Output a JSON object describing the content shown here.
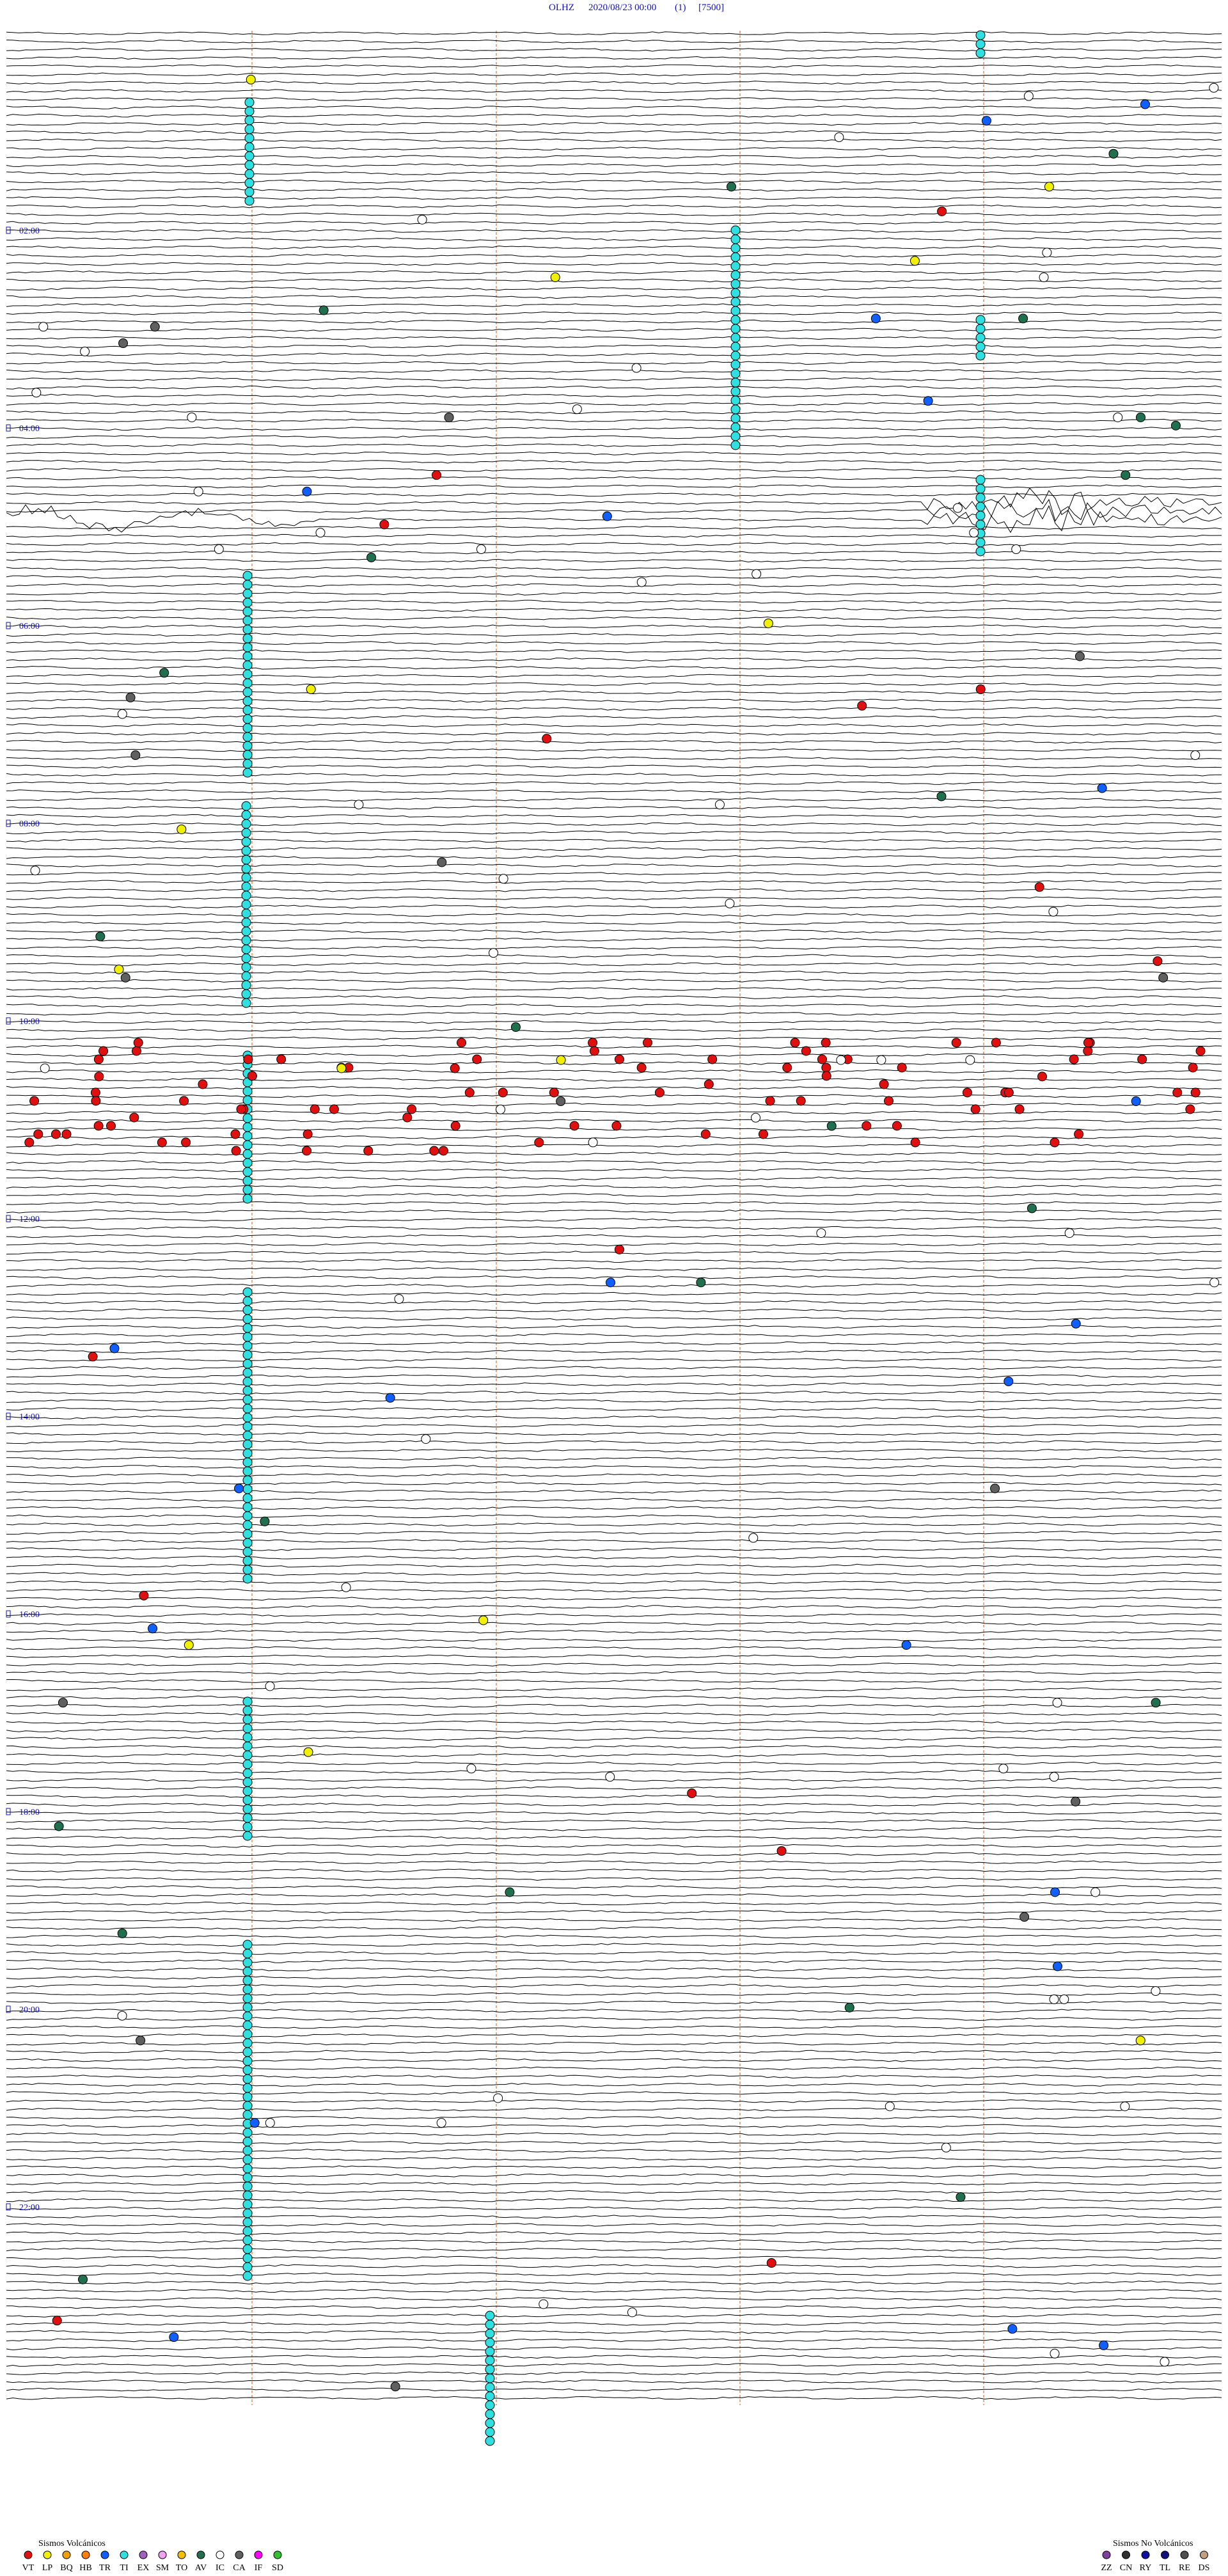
{
  "header": {
    "station": "OLHZ",
    "datetime": "2020/08/23 00:00",
    "channel": "(1)",
    "scale": "[7500]"
  },
  "hour_labels": [
    "02:00",
    "04:00",
    "06:00",
    "08:00",
    "10:00",
    "12:00",
    "14:00",
    "16:00",
    "18:00",
    "20:00",
    "22:00"
  ],
  "legend_volcanic": {
    "title": "Sismos Volcánicos",
    "items": [
      {
        "label": "VT",
        "color": "#e01010"
      },
      {
        "label": "LP",
        "color": "#f0f000"
      },
      {
        "label": "BQ",
        "color": "#f0a000"
      },
      {
        "label": "HB",
        "color": "#ff8000"
      },
      {
        "label": "TR",
        "color": "#1060ff"
      },
      {
        "label": "TI",
        "color": "#30e0e0"
      },
      {
        "label": "EX",
        "color": "#a060c0"
      },
      {
        "label": "SM",
        "color": "#f0a0f0"
      },
      {
        "label": "TO",
        "color": "#f0c000"
      },
      {
        "label": "AV",
        "color": "#207050"
      },
      {
        "label": "IC",
        "color": "#ffffff"
      },
      {
        "label": "CA",
        "color": "#606060"
      },
      {
        "label": "IF",
        "color": "#ff00ff"
      },
      {
        "label": "SD",
        "color": "#30c030"
      }
    ]
  },
  "legend_non_volcanic": {
    "title": "Sismos No Volcánicos",
    "items": [
      {
        "label": "ZZ",
        "color": "#8040a0"
      },
      {
        "label": "CN",
        "color": "#303030"
      },
      {
        "label": "RY",
        "color": "#1010a0"
      },
      {
        "label": "TL",
        "color": "#101080"
      },
      {
        "label": "RE",
        "color": "#505050"
      },
      {
        "label": "DS",
        "color": "#c0a080"
      }
    ]
  }
}
